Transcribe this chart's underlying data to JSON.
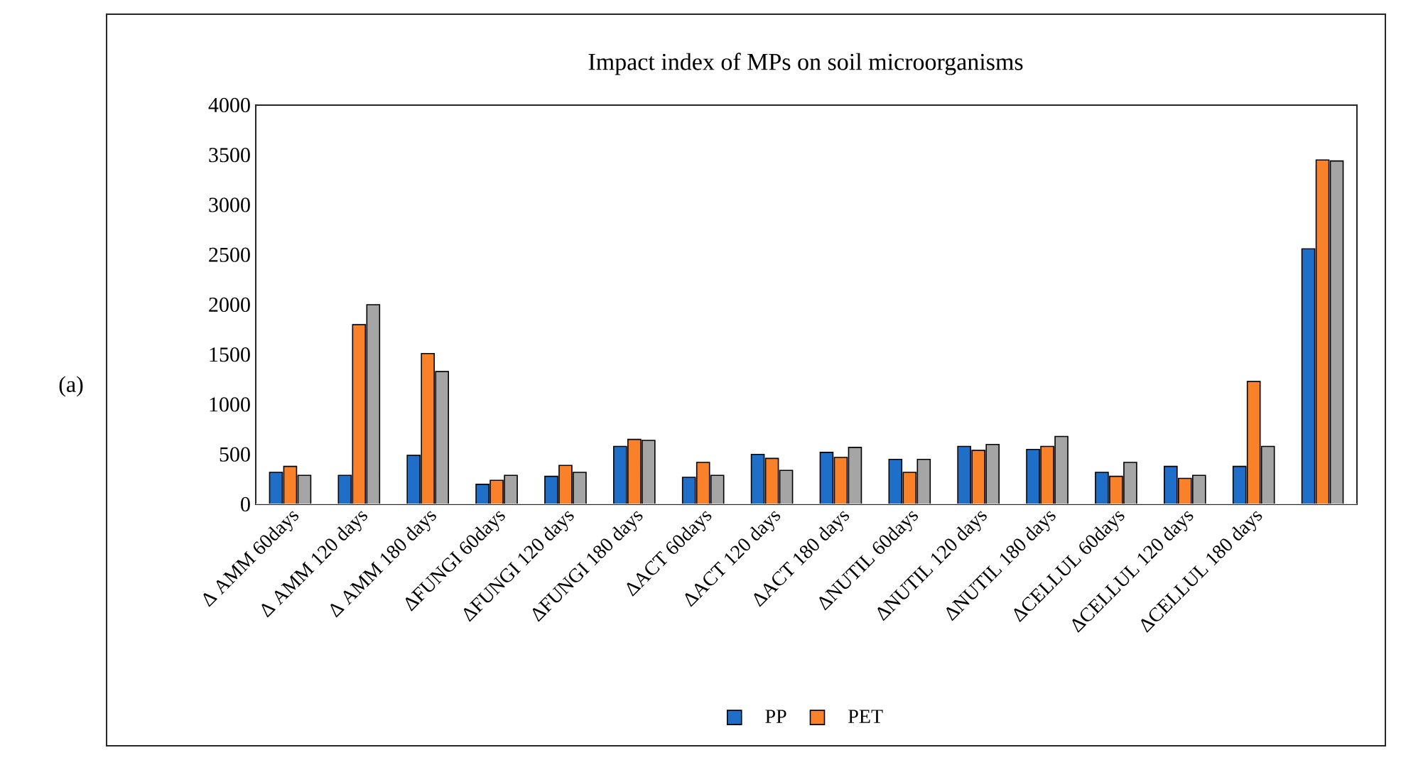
{
  "chart_data": {
    "type": "bar",
    "title": "Impact index of MPs on soil microorganisms",
    "annotations": [
      "(a)"
    ],
    "categories": [
      "Δ AMM 60days",
      "Δ AMM 120 days",
      "Δ AMM 180 days",
      "ΔFUNGI 60days",
      "ΔFUNGI 120 days",
      "ΔFUNGI 180 days",
      "ΔACT 60days",
      "ΔACT 120 days",
      "ΔACT 180 days",
      "ΔNUTIL 60days",
      "ΔNUTIL 120 days",
      "ΔNUTIL 180 days",
      "ΔCELLUL 60days",
      "ΔCELLUL 120 days",
      "ΔCELLUL 180 days",
      null
    ],
    "series": [
      {
        "name": "PP",
        "color": "#1f6fc9",
        "values": [
          320,
          290,
          490,
          200,
          280,
          580,
          270,
          500,
          520,
          450,
          580,
          550,
          320,
          380,
          380,
          2560
        ]
      },
      {
        "name": "PET",
        "color": "#f9812a",
        "values": [
          380,
          1800,
          1510,
          240,
          390,
          650,
          420,
          460,
          470,
          320,
          540,
          580,
          280,
          260,
          1230,
          3450
        ]
      },
      {
        "color": "#a5a5a5",
        "values": [
          290,
          2000,
          1330,
          290,
          320,
          640,
          290,
          340,
          570,
          450,
          600,
          680,
          420,
          290,
          580,
          3440
        ]
      }
    ],
    "ylim": [
      0,
      4000
    ],
    "yticks": [
      0,
      500,
      1000,
      1500,
      2000,
      2500,
      3000,
      3500,
      4000
    ],
    "legend": "bottom"
  }
}
